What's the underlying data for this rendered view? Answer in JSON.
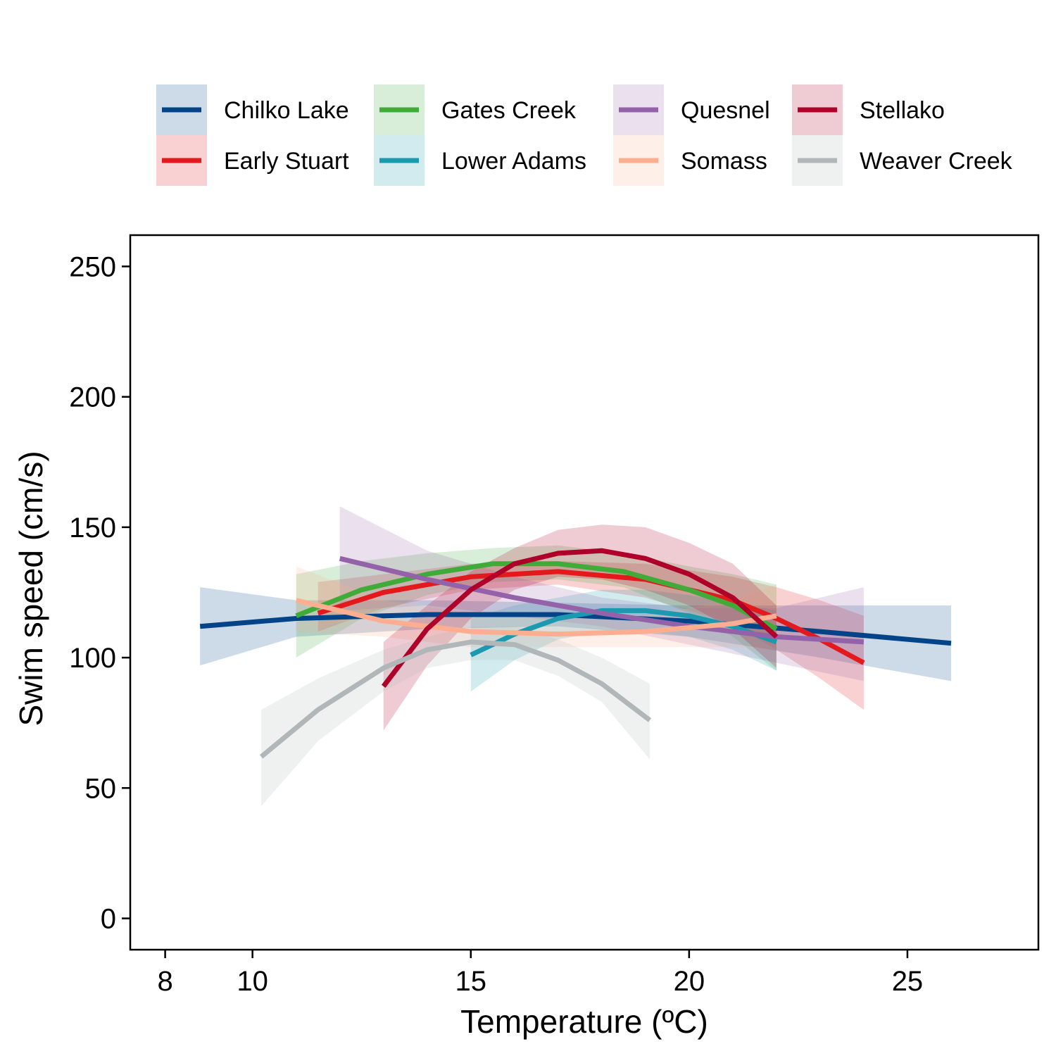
{
  "chart_data": {
    "type": "line",
    "title": "",
    "xlabel": "Temperature (ºC)",
    "ylabel": "Swim speed (cm/s)",
    "xlim": [
      7.2,
      28
    ],
    "ylim": [
      -12,
      262
    ],
    "x_ticks": [
      8,
      10,
      15,
      20,
      25
    ],
    "y_ticks": [
      0,
      50,
      100,
      150,
      200,
      250
    ],
    "grid": false,
    "legend_position": "top",
    "series": [
      {
        "name": "Chilko Lake",
        "color": "#034488",
        "x": [
          8.8,
          11,
          14,
          17,
          20,
          23,
          26
        ],
        "y": [
          112,
          115,
          116.5,
          116.5,
          114,
          110,
          105.5
        ],
        "lower": [
          97,
          108,
          111,
          112,
          108,
          100,
          91
        ],
        "upper": [
          127,
          122,
          122,
          121,
          120,
          120,
          120
        ]
      },
      {
        "name": "Early Stuart",
        "color": "#E3191C",
        "x": [
          11.5,
          13,
          15,
          17,
          19,
          21,
          22,
          23,
          24
        ],
        "y": [
          117,
          125,
          131,
          133,
          130,
          122,
          115,
          107,
          98
        ],
        "lower": [
          110,
          119,
          126,
          128,
          123,
          113,
          103,
          92,
          80
        ],
        "upper": [
          129,
          132,
          136,
          137,
          136,
          131,
          127,
          122,
          116
        ]
      },
      {
        "name": "Gates Creek",
        "color": "#41AB3A",
        "x": [
          11,
          12.5,
          14,
          15.5,
          17,
          18.5,
          20,
          21,
          22
        ],
        "y": [
          116,
          126,
          132,
          136,
          136,
          133,
          126,
          120,
          111
        ],
        "lower": [
          100,
          115,
          124,
          129,
          130,
          127,
          117,
          108,
          95
        ],
        "upper": [
          132,
          137,
          140,
          142,
          143,
          140,
          135,
          132,
          128
        ]
      },
      {
        "name": "Lower Adams",
        "color": "#1B9AAF",
        "x": [
          15,
          16,
          17,
          18,
          19,
          20,
          21,
          22
        ],
        "y": [
          101,
          109,
          115,
          118,
          118,
          116,
          112,
          106
        ],
        "lower": [
          87,
          99,
          107,
          110,
          110,
          108,
          103,
          95
        ],
        "upper": [
          115,
          120,
          123,
          126,
          126,
          124,
          121,
          118
        ]
      },
      {
        "name": "Quesnel",
        "color": "#9462A9",
        "x": [
          12,
          14,
          16,
          18,
          20,
          22,
          24
        ],
        "y": [
          138,
          130,
          123,
          117,
          112,
          108,
          106
        ],
        "lower": [
          118,
          120,
          116,
          112,
          105,
          98,
          91
        ],
        "upper": [
          158,
          141,
          131,
          123,
          119,
          119,
          127
        ]
      },
      {
        "name": "Somass",
        "color": "#FDAE91",
        "x": [
          11,
          13,
          15,
          17,
          19,
          21,
          22
        ],
        "y": [
          122,
          114,
          110,
          109,
          110,
          113,
          116
        ],
        "lower": [
          110,
          108,
          104,
          104,
          104,
          104,
          103
        ],
        "upper": [
          135,
          122,
          117,
          115,
          116,
          122,
          128
        ]
      },
      {
        "name": "Stellako",
        "color": "#AF0029",
        "x": [
          13,
          14,
          15,
          16,
          17,
          18,
          19,
          20,
          21,
          22
        ],
        "y": [
          89,
          111,
          126,
          136,
          140,
          141,
          138,
          132,
          123,
          108
        ],
        "lower": [
          72,
          97,
          115,
          126,
          131,
          130,
          126,
          120,
          111,
          96
        ],
        "upper": [
          106,
          120,
          133,
          142,
          149,
          151,
          150,
          144,
          136,
          120
        ]
      },
      {
        "name": "Weaver Creek",
        "color": "#B1B7B9",
        "x": [
          10.2,
          11.5,
          13,
          14,
          15,
          16,
          17,
          18,
          19.1
        ],
        "y": [
          62,
          80,
          96,
          103,
          106,
          105,
          99,
          90,
          76
        ],
        "lower": [
          43,
          68,
          87,
          96,
          99,
          99,
          93,
          83,
          61
        ],
        "upper": [
          80,
          92,
          103,
          108,
          112,
          112,
          107,
          100,
          90
        ]
      }
    ]
  }
}
